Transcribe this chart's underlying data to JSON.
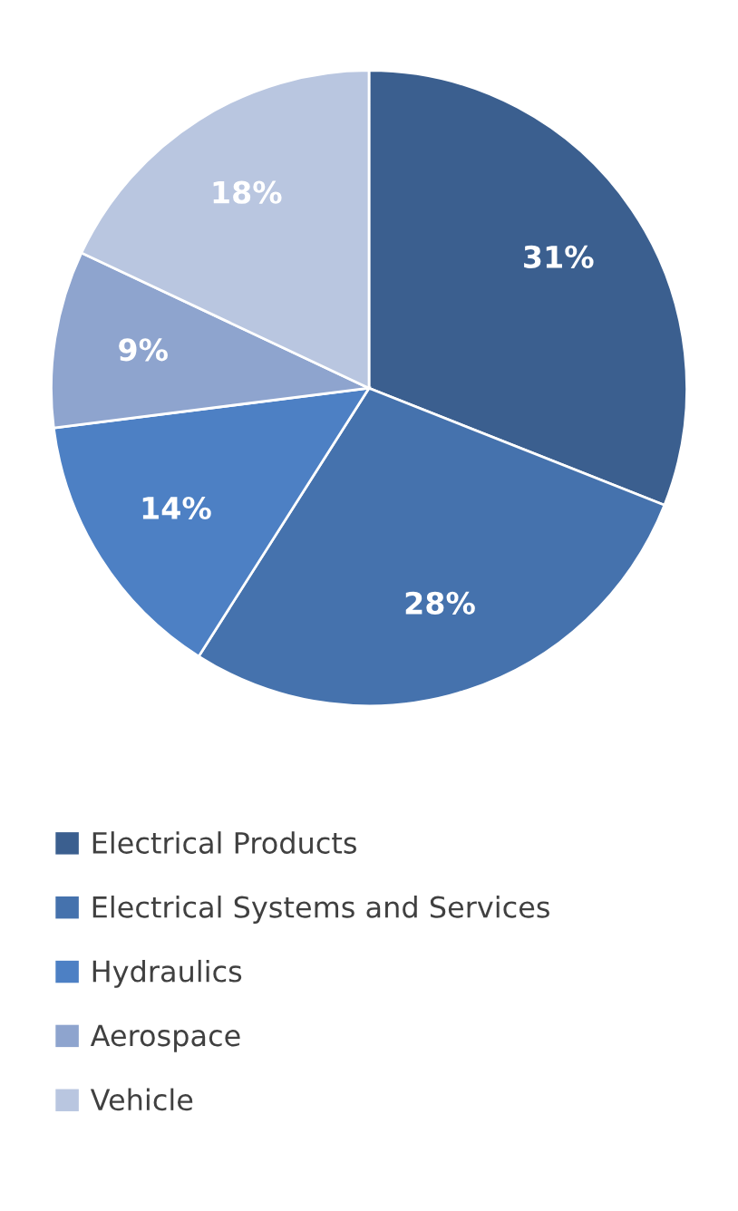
{
  "chart_data": {
    "type": "pie",
    "categories": [
      "Electrical Products",
      "Electrical Systems and Services",
      "Hydraulics",
      "Aerospace",
      "Vehicle"
    ],
    "values": [
      31,
      28,
      14,
      9,
      18
    ],
    "colors": [
      "#3b5f8f",
      "#4572ad",
      "#4d80c4",
      "#8ea4ce",
      "#b9c6e0"
    ],
    "value_labels": [
      "31%",
      "28%",
      "14%",
      "9%",
      "18%"
    ],
    "legend": "bottom"
  }
}
